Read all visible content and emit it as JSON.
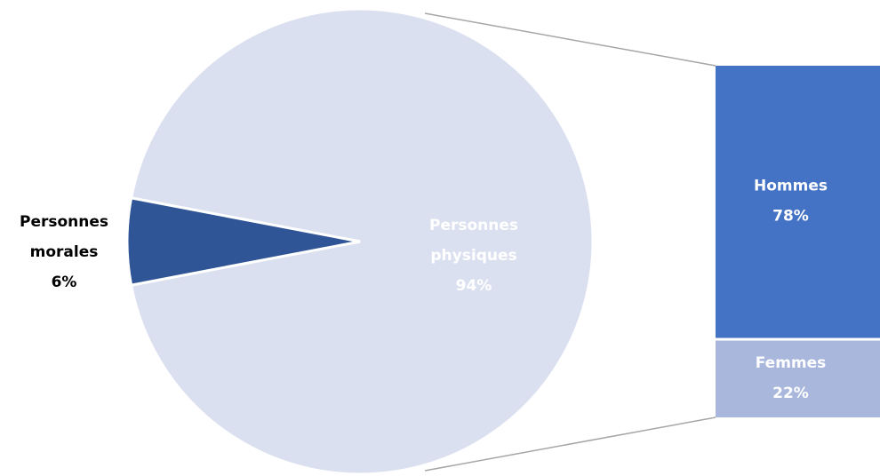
{
  "chart_data": {
    "type": "pie",
    "variant": "bar-of-pie",
    "pie": {
      "slices": [
        {
          "name_lines": [
            "Personnes",
            "physiques"
          ],
          "value": 94,
          "value_label": "94%",
          "color": "#dae0ef",
          "label_color": "#ffffff"
        },
        {
          "name_lines": [
            "Personnes",
            "morales"
          ],
          "value": 6,
          "value_label": "6%",
          "color": "#2f5597",
          "label_color": "#000000"
        }
      ]
    },
    "breakdown_of": "Personnes physiques",
    "bar": {
      "segments": [
        {
          "name": "Hommes",
          "value": 78,
          "value_label": "78%",
          "color": "#4472c4",
          "label_color": "#ffffff"
        },
        {
          "name": "Femmes",
          "value": 22,
          "value_label": "22%",
          "color": "#a9b7dc",
          "label_color": "#ffffff"
        }
      ]
    }
  }
}
